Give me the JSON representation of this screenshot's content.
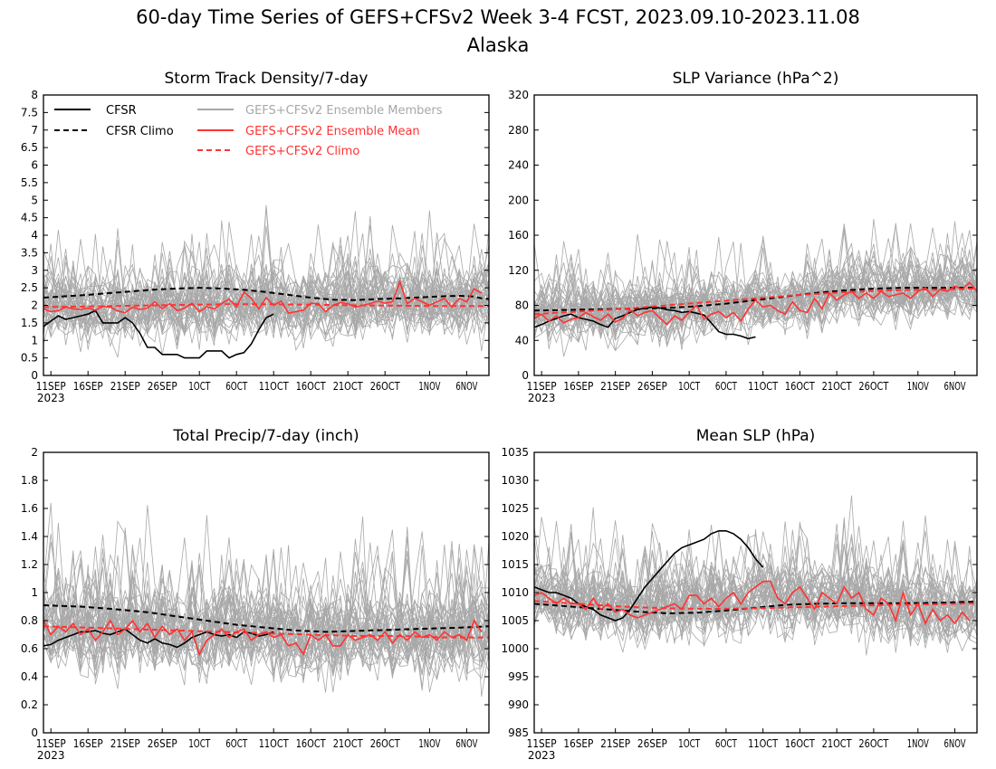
{
  "title_line1": "60-day Time Series of GEFS+CFSv2 Week 3-4 FCST, 2023.09.10-2023.11.08",
  "title_line2": "Alaska",
  "colors": {
    "cfsr": "#000000",
    "members": "#a8a8a8",
    "ens_mean": "#ff3333",
    "ens_climo": "#ff3333"
  },
  "legend": {
    "cfsr": "CFSR",
    "cfsr_climo": "CFSR Climo",
    "members": "GEFS+CFSv2 Ensemble Members",
    "ens_mean": "GEFS+CFSv2 Ensemble Mean",
    "ens_climo": "GEFS+CFSv2 Climo"
  },
  "chart_data": [
    {
      "type": "line",
      "title": "Storm Track Density/7-day",
      "x": {
        "start": "2023-09-10",
        "days": 60
      },
      "x_ticks": [
        "11SEP",
        "16SEP",
        "21SEP",
        "26SEP",
        "1OCT",
        "6OCT",
        "11OCT",
        "16OCT",
        "21OCT",
        "26OCT",
        "1NOV",
        "6NOV"
      ],
      "x_tick_year": "2023",
      "ylim": [
        0,
        8
      ],
      "y_ticks": [
        "0",
        "0.5",
        "1",
        "1.5",
        "2",
        "2.5",
        "3",
        "3.5",
        "4",
        "4.5",
        "5",
        "5.5",
        "6",
        "6.5",
        "7",
        "7.5",
        "8"
      ],
      "series": [
        {
          "name": "CFSR",
          "style": "solid",
          "color": "#000000",
          "values": [
            1.4,
            1.55,
            1.7,
            1.6,
            1.65,
            1.7,
            1.75,
            1.85,
            1.5,
            1.5,
            1.5,
            1.65,
            1.5,
            1.2,
            0.8,
            0.8,
            0.6,
            0.6,
            0.6,
            0.5,
            0.5,
            0.5,
            0.7,
            0.7,
            0.7,
            0.5,
            0.6,
            0.65,
            0.9,
            1.3,
            1.65,
            1.75
          ]
        },
        {
          "name": "CFSR Climo",
          "style": "dashed",
          "color": "#000000",
          "values": [
            2.22,
            2.26,
            2.3,
            2.35,
            2.4,
            2.45,
            2.48,
            2.5,
            2.48,
            2.44,
            2.38,
            2.3,
            2.22,
            2.16,
            2.15,
            2.18,
            2.2,
            2.23,
            2.26,
            2.27,
            2.25,
            2.2,
            2.18
          ],
          "x_days": [
            0,
            3,
            6,
            9,
            12,
            15,
            18,
            21,
            24,
            27,
            30,
            33,
            36,
            39,
            42,
            45,
            48,
            51,
            54,
            56,
            58,
            59,
            60
          ]
        },
        {
          "name": "GEFS+CFSv2 Ensemble Mean",
          "style": "solid",
          "color": "#ff3333",
          "values": [
            1.9,
            1.82,
            1.85,
            1.95,
            1.9,
            1.88,
            1.92,
            1.86,
            1.97,
            1.95,
            1.84,
            1.79,
            1.95,
            1.88,
            1.92,
            2.1,
            1.9,
            2.05,
            1.85,
            1.92,
            2.06,
            1.82,
            1.96,
            1.9,
            2.05,
            2.18,
            1.95,
            2.38,
            2.2,
            1.9,
            2.22,
            2.0,
            2.12,
            1.78,
            1.82,
            1.86,
            2.06,
            2.05,
            1.82,
            2.0,
            2.08,
            2.05,
            1.95,
            2.0,
            2.05,
            2.12,
            2.06,
            2.1,
            2.67,
            2.05,
            2.2,
            2.1,
            2.0,
            2.1,
            2.2,
            1.95,
            2.2,
            2.1,
            2.47,
            2.35
          ]
        },
        {
          "name": "GEFS+CFSv2 Climo",
          "style": "dashed",
          "color": "#ff3333",
          "values": [
            1.95,
            1.97,
            1.99,
            2.01,
            2.03,
            2.03,
            2.02,
            2.0,
            1.99,
            1.98,
            1.98
          ],
          "x_days": [
            0,
            6,
            12,
            18,
            24,
            30,
            36,
            42,
            48,
            54,
            60
          ]
        }
      ]
    },
    {
      "type": "line",
      "title": "SLP Variance (hPa^2)",
      "x": {
        "start": "2023-09-10",
        "days": 60
      },
      "x_ticks": [
        "11SEP",
        "16SEP",
        "21SEP",
        "26SEP",
        "1OCT",
        "6OCT",
        "11OCT",
        "16OCT",
        "21OCT",
        "26OCT",
        "1NOV",
        "6NOV"
      ],
      "x_tick_year": "2023",
      "ylim": [
        0,
        320
      ],
      "y_ticks": [
        "0",
        "40",
        "80",
        "120",
        "160",
        "200",
        "240",
        "280",
        "320"
      ],
      "series": [
        {
          "name": "CFSR",
          "style": "solid",
          "color": "#000000",
          "values": [
            55,
            58,
            62,
            65,
            68,
            70,
            66,
            64,
            62,
            58,
            55,
            65,
            68,
            72,
            75,
            77,
            78,
            77,
            75,
            74,
            72,
            73,
            71,
            69,
            60,
            50,
            47,
            47,
            45,
            42,
            44
          ]
        },
        {
          "name": "CFSR Climo",
          "style": "dashed",
          "color": "#000000",
          "values": [
            74,
            75,
            76,
            77,
            79,
            82,
            86,
            90,
            94,
            97,
            99,
            100,
            100,
            100,
            100
          ],
          "x_days": [
            0,
            6,
            12,
            18,
            22,
            26,
            30,
            34,
            38,
            42,
            46,
            50,
            54,
            57,
            60
          ]
        },
        {
          "name": "GEFS+CFSv2 Ensemble Mean",
          "style": "solid",
          "color": "#ff3333",
          "values": [
            65,
            70,
            62,
            68,
            60,
            64,
            66,
            72,
            67,
            63,
            70,
            61,
            65,
            75,
            68,
            72,
            74,
            66,
            58,
            68,
            63,
            72,
            80,
            64,
            70,
            73,
            66,
            72,
            62,
            76,
            86,
            78,
            80,
            74,
            70,
            84,
            74,
            72,
            88,
            76,
            94,
            86,
            92,
            96,
            88,
            94,
            88,
            96,
            90,
            92,
            94,
            88,
            96,
            100,
            90,
            98,
            96,
            102,
            98,
            106,
            96
          ]
        },
        {
          "name": "GEFS+CFSv2 Climo",
          "style": "dashed",
          "color": "#ff3333",
          "values": [
            70,
            73,
            76,
            80,
            84,
            88,
            92,
            95,
            97,
            98,
            99
          ],
          "x_days": [
            0,
            6,
            12,
            18,
            24,
            30,
            36,
            42,
            48,
            54,
            60
          ]
        }
      ]
    },
    {
      "type": "line",
      "title": "Total Precip/7-day (inch)",
      "x": {
        "start": "2023-09-10",
        "days": 60
      },
      "x_ticks": [
        "11SEP",
        "16SEP",
        "21SEP",
        "26SEP",
        "1OCT",
        "6OCT",
        "11OCT",
        "16OCT",
        "21OCT",
        "26OCT",
        "1NOV",
        "6NOV"
      ],
      "x_tick_year": "2023",
      "ylim": [
        0,
        2
      ],
      "y_ticks": [
        "0",
        "0.2",
        "0.4",
        "0.6",
        "0.8",
        "1",
        "1.2",
        "1.4",
        "1.6",
        "1.8",
        "2"
      ],
      "series": [
        {
          "name": "CFSR",
          "style": "solid",
          "color": "#000000",
          "values": [
            0.62,
            0.63,
            0.66,
            0.68,
            0.7,
            0.72,
            0.72,
            0.73,
            0.71,
            0.7,
            0.72,
            0.74,
            0.7,
            0.66,
            0.64,
            0.67,
            0.64,
            0.63,
            0.61,
            0.64,
            0.68,
            0.7,
            0.72,
            0.7,
            0.69,
            0.7,
            0.68,
            0.72,
            0.71,
            0.69,
            0.7,
            0.72
          ]
        },
        {
          "name": "CFSR Climo",
          "style": "dashed",
          "color": "#000000",
          "values": [
            0.91,
            0.9,
            0.88,
            0.86,
            0.83,
            0.8,
            0.77,
            0.75,
            0.73,
            0.72,
            0.73,
            0.74,
            0.75,
            0.76
          ],
          "x_days": [
            0,
            5,
            10,
            14,
            18,
            22,
            26,
            30,
            34,
            38,
            44,
            50,
            56,
            60
          ]
        },
        {
          "name": "GEFS+CFSv2 Ensemble Mean",
          "style": "solid",
          "color": "#ff3333",
          "values": [
            0.8,
            0.7,
            0.76,
            0.72,
            0.78,
            0.7,
            0.74,
            0.66,
            0.72,
            0.8,
            0.7,
            0.74,
            0.8,
            0.72,
            0.78,
            0.68,
            0.76,
            0.7,
            0.74,
            0.66,
            0.72,
            0.56,
            0.66,
            0.7,
            0.74,
            0.68,
            0.72,
            0.74,
            0.66,
            0.7,
            0.72,
            0.68,
            0.7,
            0.62,
            0.64,
            0.56,
            0.7,
            0.66,
            0.7,
            0.62,
            0.62,
            0.7,
            0.66,
            0.68,
            0.7,
            0.66,
            0.72,
            0.64,
            0.7,
            0.66,
            0.72,
            0.68,
            0.7,
            0.66,
            0.72,
            0.68,
            0.7,
            0.66,
            0.8,
            0.72
          ]
        },
        {
          "name": "GEFS+CFSv2 Climo",
          "style": "dashed",
          "color": "#ff3333",
          "values": [
            0.76,
            0.75,
            0.74,
            0.73,
            0.72,
            0.71,
            0.7,
            0.69,
            0.69,
            0.68,
            0.68
          ],
          "x_days": [
            0,
            6,
            12,
            18,
            24,
            30,
            36,
            42,
            48,
            54,
            60
          ]
        }
      ]
    },
    {
      "type": "line",
      "title": "Mean SLP (hPa)",
      "x": {
        "start": "2023-09-10",
        "days": 60
      },
      "x_ticks": [
        "11SEP",
        "16SEP",
        "21SEP",
        "26SEP",
        "1OCT",
        "6OCT",
        "11OCT",
        "16OCT",
        "21OCT",
        "26OCT",
        "1NOV",
        "6NOV"
      ],
      "x_tick_year": "2023",
      "ylim": [
        985,
        1035
      ],
      "y_ticks": [
        "985",
        "990",
        "995",
        "1000",
        "1005",
        "1010",
        "1015",
        "1020",
        "1025",
        "1030",
        "1035"
      ],
      "series": [
        {
          "name": "CFSR",
          "style": "solid",
          "color": "#000000",
          "values": [
            1011,
            1010.5,
            1010,
            1010,
            1009.5,
            1009,
            1008,
            1007.5,
            1007,
            1006,
            1005.5,
            1005,
            1005.5,
            1007,
            1009,
            1011,
            1012.5,
            1014,
            1015.5,
            1017,
            1018,
            1018.5,
            1019,
            1019.5,
            1020.5,
            1021,
            1021,
            1020.5,
            1019.5,
            1018,
            1016,
            1014.5
          ]
        },
        {
          "name": "CFSR Climo",
          "style": "dashed",
          "color": "#000000",
          "values": [
            1008,
            1007.5,
            1007,
            1006.6,
            1006.3,
            1006.4,
            1006.8,
            1007.3,
            1007.8,
            1008,
            1008.1,
            1008.1,
            1008.1,
            1008.2,
            1008.4
          ],
          "x_days": [
            0,
            5,
            10,
            14,
            18,
            22,
            26,
            30,
            34,
            38,
            42,
            46,
            50,
            55,
            60
          ]
        },
        {
          "name": "GEFS+CFSv2 Ensemble Mean",
          "style": "solid",
          "color": "#ff3333",
          "values": [
            1009.5,
            1010,
            1009,
            1008,
            1009,
            1008,
            1008,
            1007,
            1009,
            1007,
            1008,
            1006.5,
            1007,
            1006,
            1005.5,
            1006,
            1006.5,
            1007,
            1007.5,
            1008,
            1007,
            1009.5,
            1009.5,
            1008,
            1009,
            1007.5,
            1009,
            1010,
            1008,
            1010,
            1011,
            1012,
            1012,
            1009,
            1008,
            1010,
            1011,
            1009,
            1007,
            1010,
            1009,
            1008,
            1011,
            1009,
            1010,
            1007,
            1006,
            1009,
            1008,
            1005,
            1010,
            1006,
            1008,
            1004.5,
            1007,
            1005,
            1006,
            1004.5,
            1006.5,
            1005
          ]
        },
        {
          "name": "GEFS+CFSv2 Climo",
          "style": "dashed",
          "color": "#ff3333",
          "values": [
            1008.5,
            1008,
            1007.5,
            1007.2,
            1007.1,
            1007.2,
            1007.4,
            1007.6,
            1007.8,
            1007.9,
            1008.1
          ],
          "x_days": [
            0,
            6,
            12,
            18,
            24,
            30,
            36,
            42,
            48,
            54,
            60
          ]
        }
      ]
    }
  ]
}
